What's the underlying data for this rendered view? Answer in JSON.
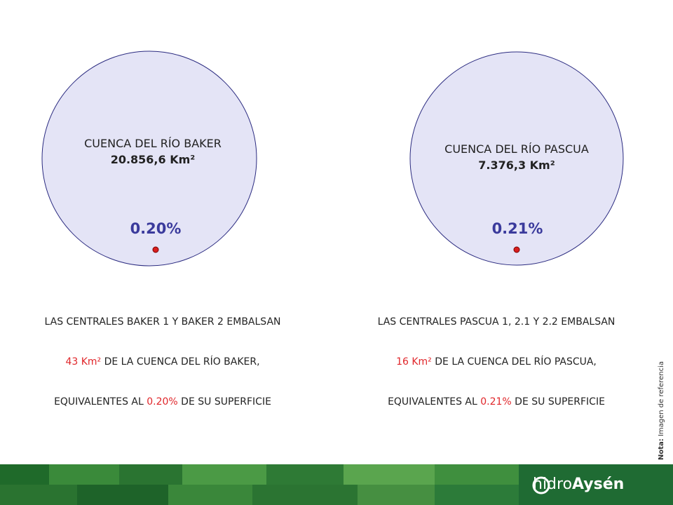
{
  "panels": [
    {
      "title": "CUENCA DEL RÍO BAKER",
      "area": "20.856,6 Km²",
      "percent": "0.20%",
      "description": {
        "line1": "LAS CENTRALES BAKER 1 Y BAKER 2 EMBALSAN",
        "line2": {
          "highlight": "43 Km²",
          "rest": " DE LA CUENCA DEL RÍO BAKER,"
        },
        "line3": {
          "before": "EQUIVALENTES AL ",
          "highlight": "0.20%",
          "after": " DE SU SUPERFICIE"
        }
      }
    },
    {
      "title": "CUENCA DEL RÍO PASCUA",
      "area": "7.376,3 Km²",
      "percent": "0.21%",
      "description": {
        "line1": "LAS CENTRALES PASCUA 1, 2.1 Y 2.2 EMBALSAN",
        "line2": {
          "highlight": "16 Km²",
          "rest": " DE LA CUENCA DEL RÍO PASCUA,"
        },
        "line3": {
          "before": "EQUIVALENTES AL ",
          "highlight": "0.21%",
          "after": " DE SU SUPERFICIE"
        }
      }
    }
  ],
  "note": {
    "label": "Nota:",
    "text": " Imagen de referencia"
  },
  "logo": {
    "part1": "hidro",
    "part2": "Aysén"
  }
}
